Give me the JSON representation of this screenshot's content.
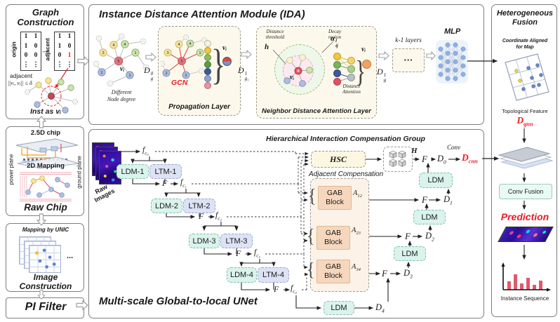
{
  "colors": {
    "accent_red": "#ed1c24",
    "mint": "#daf3ec",
    "lavender": "#dde2f5",
    "peach": "#f6d7bd",
    "cream": "#fcf9ec",
    "node_yellow": "#f4e3a1",
    "node_green": "#cbe3ad",
    "node_blue": "#aebdde",
    "node_red": "#e2737c",
    "mlp_blue": "#8fb1e0"
  },
  "left": {
    "graph_construction": {
      "title": "Graph Construction",
      "origin_label": "origin",
      "adjacent_label": "adjacent",
      "origin_cells": [
        "1",
        "1",
        "1",
        "0",
        "0",
        "0",
        "⋮",
        "⋮"
      ],
      "adjacent_cells": [
        "1",
        "1",
        "1",
        "0",
        "0",
        "1",
        "⋮",
        "⋮"
      ],
      "arrow": "→",
      "adjacent_text": "adjacent",
      "distance_formula": "||vᵢ, vⱼ|| ≤ δ",
      "inst_label": "Inst as vᵢ"
    },
    "raw_chip": {
      "chip_label": "2.5D chip",
      "power_label": "power plane",
      "ground_label": "ground plane",
      "mapping_label": "2D Mapping",
      "title": "Raw Chip"
    },
    "image_construction": {
      "header": "Mapping by UNIC",
      "ellipsis": "...",
      "title": "Image Construction"
    },
    "pi_filter": {
      "title": "PI Filter"
    }
  },
  "ida": {
    "title": "Instance Distance Attention Module (IDA)",
    "graph1_caption1": "Different",
    "graph1_caption2": "Node degree",
    "node_numbers": [
      "3",
      "4",
      "4",
      "1",
      "5",
      "2",
      "1"
    ],
    "vi": "vᵢ",
    "arrow1": {
      "b": "D",
      "s": "0",
      "u": "g"
    },
    "propagation_title": "Propagation Layer",
    "gcn": "GCN",
    "arrow2": {
      "b": "D",
      "s": "1",
      "u": "g₁"
    },
    "neighbor_title": "Neighbor Distance Attention Layer",
    "threshold_line1": "Distance",
    "threshold_line2": "threshold",
    "h": "h",
    "decay_line1": "Decay",
    "decay_line2": "region",
    "alpha": {
      "b": "α",
      "s": "l",
      "u": "ij"
    },
    "attention_line1": "Distance",
    "attention_line2": "Attention",
    "arrow3": {
      "b": "D",
      "s": "1",
      "u": "g"
    },
    "klayers_label": "k-1 layers",
    "klayers_dots": "···",
    "mlp_label": "MLP"
  },
  "unet": {
    "title": "Multi-scale Global-to-local UNet",
    "hicg_title": "Hierarchical Interaction Compensation Group",
    "raw_line1": "Raw",
    "raw_line2": "Images",
    "fc": [
      {
        "b": "f",
        "u": "c₀"
      },
      {
        "b": "f",
        "u": "c₁"
      },
      {
        "b": "f",
        "u": "c₂"
      },
      {
        "b": "f",
        "u": "c₃"
      },
      {
        "b": "f",
        "u": "c₄"
      }
    ],
    "ldm_enc": [
      "LDM-1",
      "LDM-2",
      "LDM-3",
      "LDM-4"
    ],
    "ltm_enc": [
      "LTM-1",
      "LTM-2",
      "LTM-3",
      "LTM-4"
    ],
    "F": "F",
    "hsc": "HSC",
    "H": "H",
    "adjacent_compensation": "Adjacent Compensation",
    "gab_line1": "GAB",
    "gab_line2": "Block",
    "A": [
      {
        "b": "A",
        "u": "12"
      },
      {
        "b": "A",
        "u": "23"
      },
      {
        "b": "A",
        "u": "34"
      }
    ],
    "D": [
      {
        "b": "D",
        "u": "0"
      },
      {
        "b": "D",
        "u": "1"
      },
      {
        "b": "D",
        "u": "2"
      },
      {
        "b": "D",
        "u": "3"
      },
      {
        "b": "D",
        "u": "4"
      }
    ],
    "conv": "Conv",
    "dcnn": {
      "b": "D",
      "u": "cnn"
    },
    "ldm_dec": "LDM"
  },
  "fusion": {
    "title_line1": "Heterogeneous",
    "title_line2": "Fusion",
    "coord_line1": "Coordinate Aligned",
    "coord_line2": "for Map",
    "topo_label": "Topological  Feature",
    "dgnn": {
      "b": "D",
      "u": "gnn"
    },
    "conv_fusion": "Conv Fusion",
    "prediction": "Prediction",
    "instance_seq": "Instance Sequence"
  }
}
